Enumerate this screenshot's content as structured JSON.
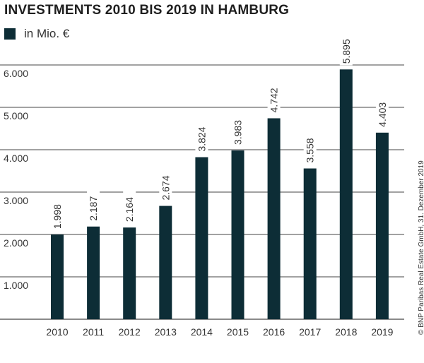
{
  "chart_data": {
    "type": "bar",
    "title": "INVESTMENTS 2010 BIS 2019 IN HAMBURG",
    "legend": [
      "in Mio. €"
    ],
    "legend_placement": "top-left",
    "categories": [
      "2010",
      "2011",
      "2012",
      "2013",
      "2014",
      "2015",
      "2016",
      "2017",
      "2018",
      "2019"
    ],
    "values": [
      1998,
      2187,
      2164,
      2674,
      3824,
      3983,
      4742,
      3558,
      5895,
      4403
    ],
    "value_labels": [
      "1.998",
      "2.187",
      "2.164",
      "2.674",
      "3.824",
      "3.983",
      "4.742",
      "3.558",
      "5.895",
      "4.403"
    ],
    "yticks": [
      1000,
      2000,
      3000,
      4000,
      5000,
      6000
    ],
    "ytick_labels": [
      "1.000",
      "2.000",
      "3.000",
      "4.000",
      "5.000",
      "6.000"
    ],
    "ylim": [
      0,
      6000
    ],
    "grid": true,
    "xlabel": "",
    "ylabel": "",
    "bar_color": "#0d2d36"
  },
  "credit": "© BNP Paribas Real Estate GmbH, 31. Dezember 2019"
}
